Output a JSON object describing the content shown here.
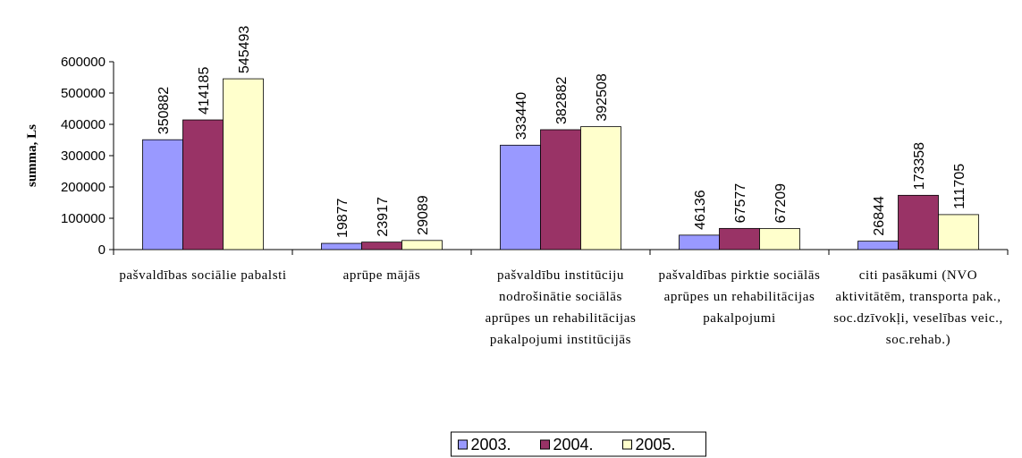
{
  "chart_data": {
    "type": "bar",
    "ylabel": "summa, Ls",
    "categories": [
      "pašvaldības sociālie pabalsti",
      "aprūpe mājās",
      "pašvaldību institūciju nodrošinātie sociālās aprūpes un rehabilitācijas pakalpojumi institūcijās",
      "pašvaldības pirktie sociālās aprūpes un rehabilitācijas pakalpojumi",
      "citi pasākumi (NVO aktivitātēm, transporta pak., soc.dzīvokļi, veselības veic., soc.rehab.)"
    ],
    "series": [
      {
        "name": "2003.",
        "color": "#9999ff",
        "values": [
          350882,
          19877,
          333440,
          46136,
          26844
        ]
      },
      {
        "name": "2004.",
        "color": "#993366",
        "values": [
          414185,
          23917,
          382882,
          67577,
          173358
        ]
      },
      {
        "name": "2005.",
        "color": "#ffffcc",
        "values": [
          545493,
          29089,
          392508,
          67209,
          111705
        ]
      }
    ],
    "ylim": [
      0,
      600000
    ],
    "yticks": [
      0,
      100000,
      200000,
      300000,
      400000,
      500000,
      600000
    ],
    "legend": "bottom"
  }
}
